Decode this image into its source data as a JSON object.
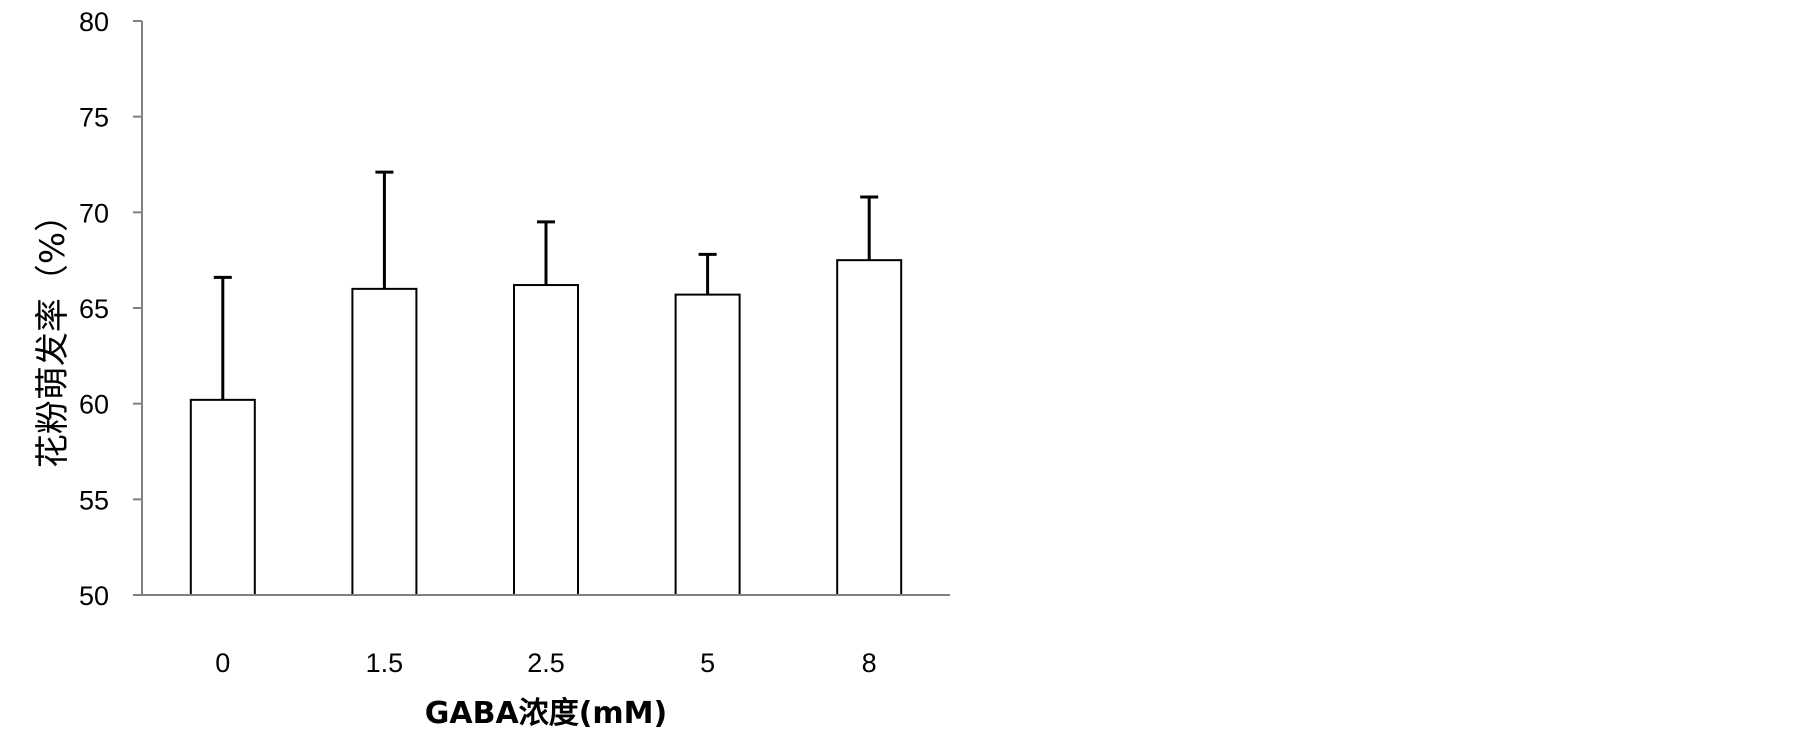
{
  "chart_data": {
    "type": "bar",
    "title": "",
    "xlabel": "GABA浓度(mM)",
    "ylabel": "花粉萌发率（%）",
    "categories": [
      "0",
      "1.5",
      "2.5",
      "5",
      "8"
    ],
    "values": [
      60.2,
      66.0,
      66.2,
      65.7,
      67.5
    ],
    "error_upper": [
      66.6,
      72.1,
      69.5,
      67.8,
      70.8
    ],
    "ylim": [
      50,
      80
    ],
    "yticks": [
      "50",
      "55",
      "60",
      "65",
      "70",
      "75",
      "80"
    ],
    "grid": false,
    "legend": "none",
    "bar_fill": "#ffffff",
    "bar_stroke": "#000000"
  }
}
